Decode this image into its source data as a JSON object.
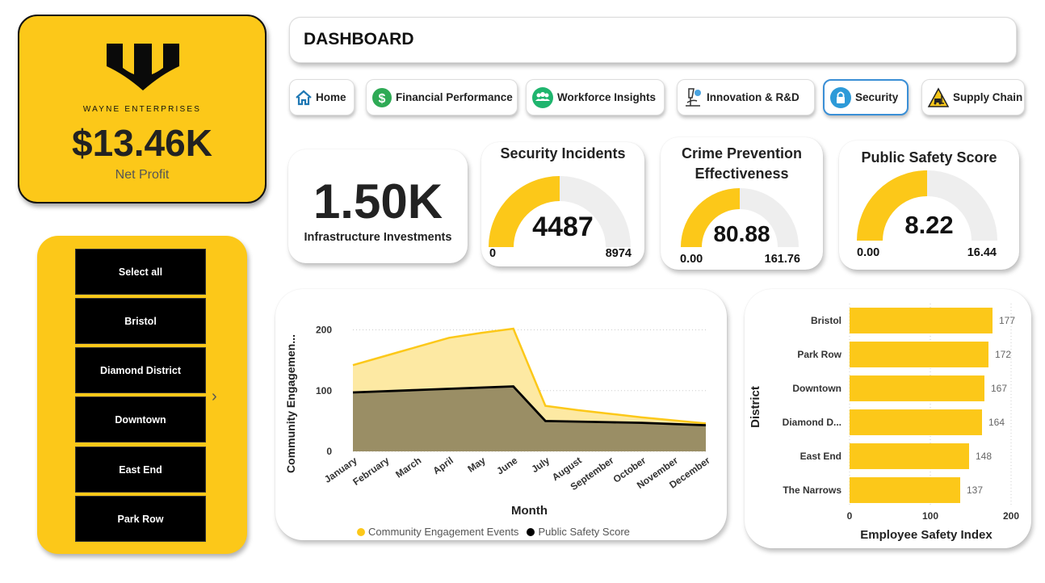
{
  "logo": {
    "company": "WAYNE ENTERPRISES",
    "net_profit_value": "$13.46K",
    "net_profit_label": "Net Profit"
  },
  "slicer": {
    "items": [
      "Select all",
      "Bristol",
      "Diamond District",
      "Downtown",
      "East End",
      "Park Row"
    ],
    "arrow": "›"
  },
  "header": {
    "title": "DASHBOARD"
  },
  "nav": {
    "home": "Home",
    "financial": "Financial Performance",
    "workforce": "Workforce Insights",
    "innovation": "Innovation & R&D",
    "security": "Security",
    "supply": "Supply Chain",
    "active": "Security"
  },
  "kpis": {
    "infrastructure": {
      "value": "1.50K",
      "label": "Infrastructure Investments"
    },
    "incidents": {
      "title": "Security Incidents",
      "value": "4487",
      "min": "0",
      "max": "8974",
      "fraction": 0.5
    },
    "crime": {
      "title_line1": "Crime Prevention",
      "title_line2": "Effectiveness",
      "value": "80.88",
      "min": "0.00",
      "max": "161.76",
      "fraction": 0.5
    },
    "safety": {
      "title": "Public Safety Score",
      "value": "8.22",
      "min": "0.00",
      "max": "16.44",
      "fraction": 0.5
    }
  },
  "colors": {
    "accent": "#fcc819",
    "accent_light": "#fde9a3",
    "dark_area": "#9a8e65",
    "black": "#000000",
    "track": "#eeeeee"
  },
  "chart_data": [
    {
      "type": "area",
      "x": [
        "January",
        "February",
        "March",
        "April",
        "May",
        "June",
        "July",
        "August",
        "September",
        "October",
        "November",
        "December"
      ],
      "series": [
        {
          "name": "Community Engagement Events",
          "values": [
            142,
            157,
            172,
            187,
            195,
            202,
            75,
            68,
            62,
            56,
            51,
            46
          ],
          "color": "#fcc819"
        },
        {
          "name": "Public Safety Score",
          "values": [
            97,
            99,
            101,
            103,
            105,
            107,
            50,
            49,
            48,
            47,
            45,
            43
          ],
          "color": "#000000"
        }
      ],
      "xlabel": "Month",
      "ylabel": "Community Engagemen...",
      "yticks": [
        0,
        100,
        200
      ],
      "ylim": [
        0,
        210
      ],
      "legend": "bottom"
    },
    {
      "type": "bar",
      "orientation": "horizontal",
      "categories": [
        "Bristol",
        "Park Row",
        "Downtown",
        "Diamond D...",
        "East End",
        "The Narrows"
      ],
      "values": [
        177,
        172,
        167,
        164,
        148,
        137
      ],
      "xlabel": "Employee Safety Index",
      "ylabel": "District",
      "xticks": [
        0,
        100,
        200
      ],
      "xlim": [
        0,
        200
      ]
    }
  ]
}
